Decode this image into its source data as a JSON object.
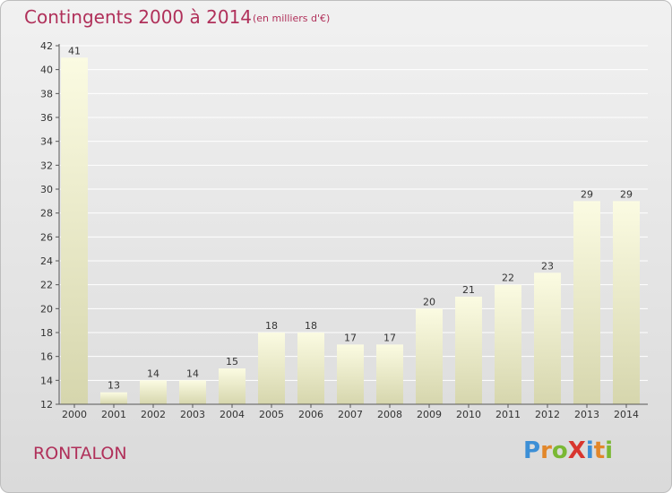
{
  "header": {
    "title": "Contingents 2000 à 2014",
    "subtitle": "(en milliers d'€)"
  },
  "footer": {
    "place": "RONTALON",
    "logo_text": "ProXiti"
  },
  "colors": {
    "title": "#b0305a",
    "bar_top": "#fbfbe2",
    "bar_bottom": "#d6d6ad",
    "axis": "#555555",
    "grid": "#ffffff"
  },
  "chart_data": {
    "type": "bar",
    "title": "Contingents 2000 à 2014",
    "subtitle": "(en milliers d'€)",
    "categories": [
      "2000",
      "2001",
      "2002",
      "2003",
      "2004",
      "2005",
      "2006",
      "2007",
      "2008",
      "2009",
      "2010",
      "2011",
      "2012",
      "2013",
      "2014"
    ],
    "values": [
      41,
      13,
      14,
      14,
      15,
      18,
      18,
      17,
      17,
      20,
      21,
      22,
      23,
      29,
      29
    ],
    "ylim": [
      12,
      42
    ],
    "yticks": [
      12,
      14,
      16,
      18,
      20,
      22,
      24,
      26,
      28,
      30,
      32,
      34,
      36,
      38,
      40,
      42
    ],
    "grid": true,
    "data_labels": true
  }
}
